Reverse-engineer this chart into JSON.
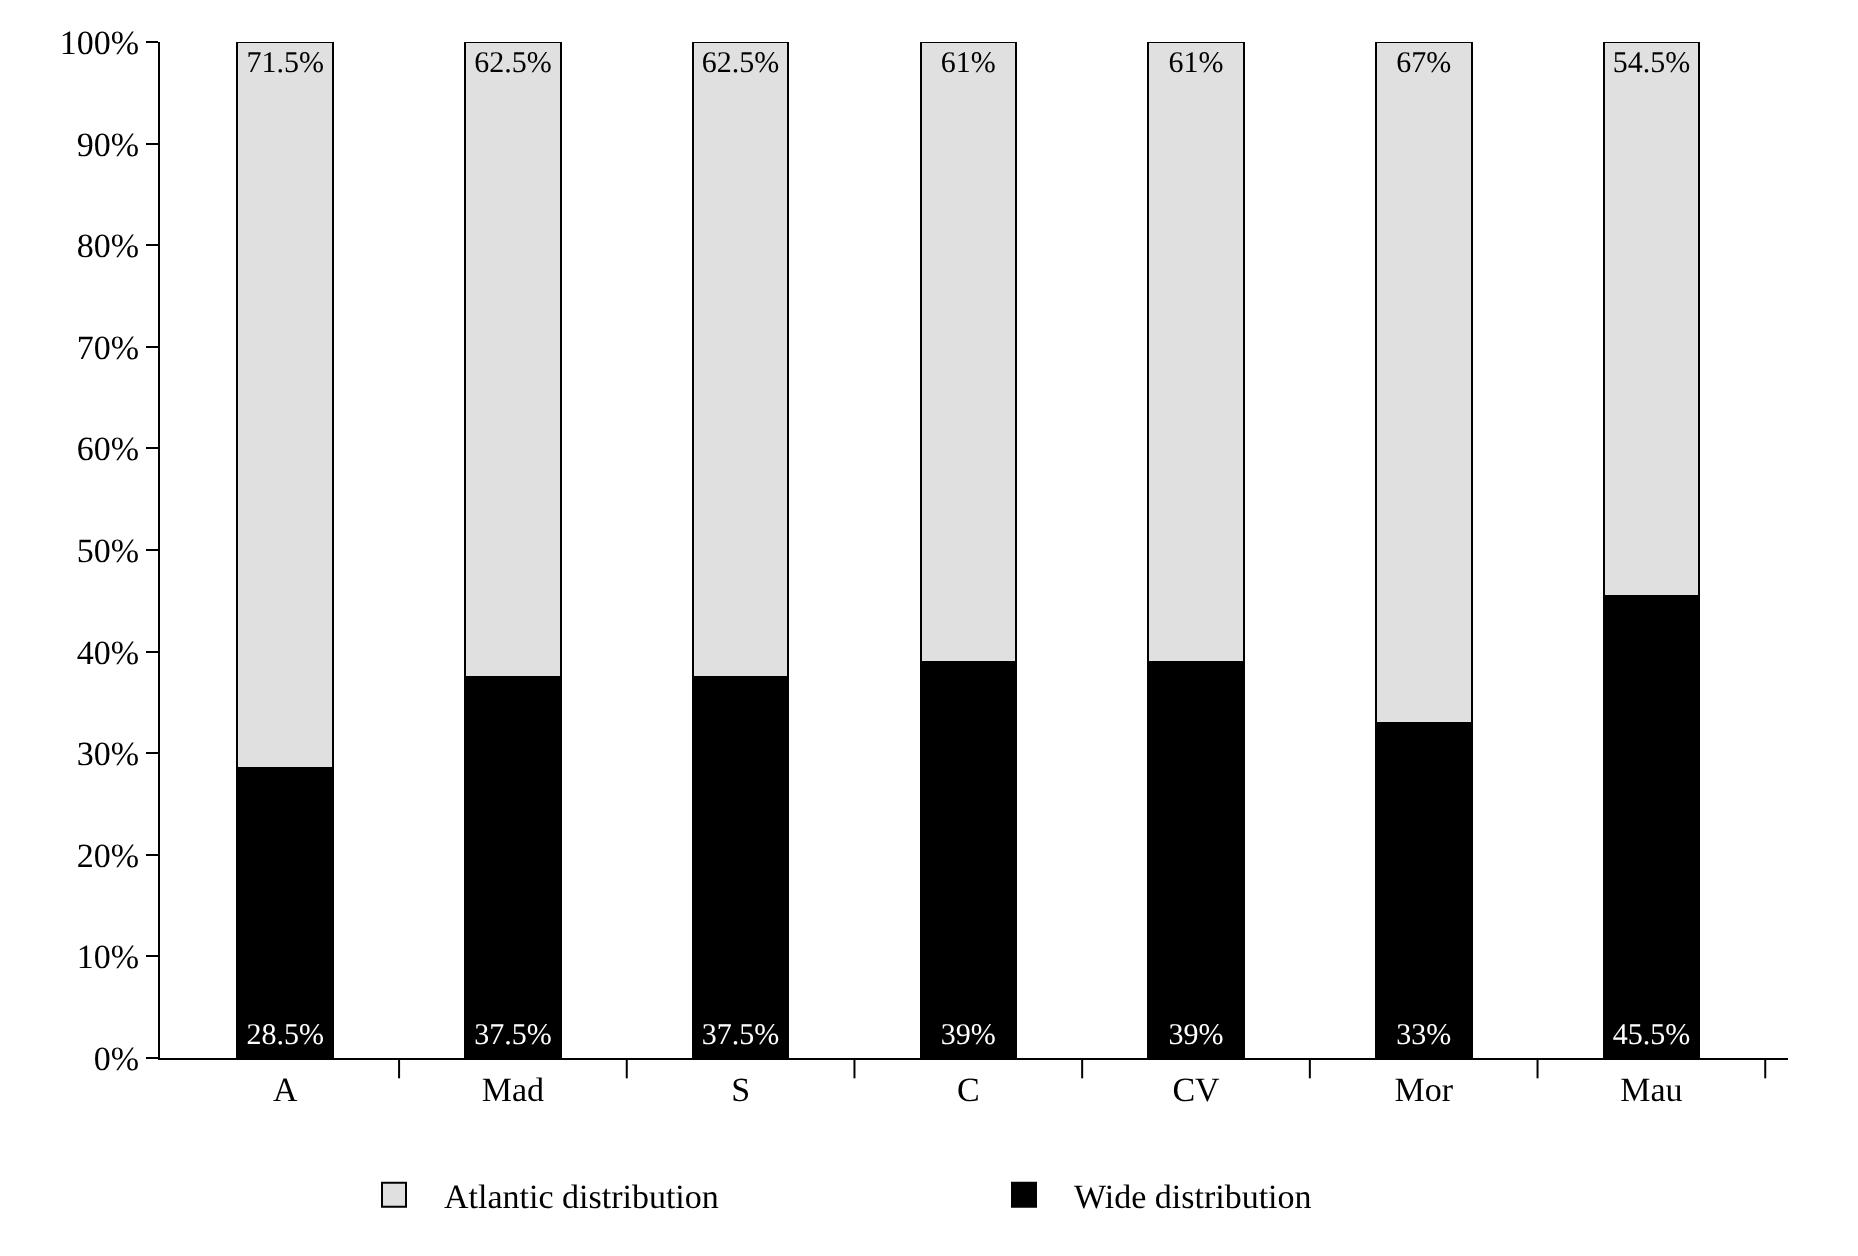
{
  "chart_data": {
    "type": "bar",
    "stacked": true,
    "categories": [
      "A",
      "Mad",
      "S",
      "C",
      "CV",
      "Mor",
      "Mau"
    ],
    "series": [
      {
        "name": "Wide distribution",
        "color": "#000000",
        "values": [
          28.5,
          37.5,
          37.5,
          39,
          39,
          33,
          45.5
        ],
        "value_labels": [
          "28.5%",
          "37.5%",
          "37.5%",
          "39%",
          "39%",
          "33%",
          "45.5%"
        ]
      },
      {
        "name": "Atlantic distribution",
        "color": "#e0e0e0",
        "values": [
          71.5,
          62.5,
          62.5,
          61,
          61,
          67,
          54.5
        ],
        "value_labels": [
          "71.5%",
          "62.5%",
          "62.5%",
          "61%",
          "61%",
          "67%",
          "54.5%"
        ]
      }
    ],
    "ylim": [
      0,
      100
    ],
    "yticks": [
      {
        "value": 0,
        "label": "0%"
      },
      {
        "value": 10,
        "label": "10%"
      },
      {
        "value": 20,
        "label": "20%"
      },
      {
        "value": 30,
        "label": "30%"
      },
      {
        "value": 40,
        "label": "40%"
      },
      {
        "value": 50,
        "label": "50%"
      },
      {
        "value": 60,
        "label": "60%"
      },
      {
        "value": 70,
        "label": "70%"
      },
      {
        "value": 80,
        "label": "80%"
      },
      {
        "value": 90,
        "label": "90%"
      },
      {
        "value": 100,
        "label": "100%"
      }
    ],
    "legend": "bottom"
  }
}
